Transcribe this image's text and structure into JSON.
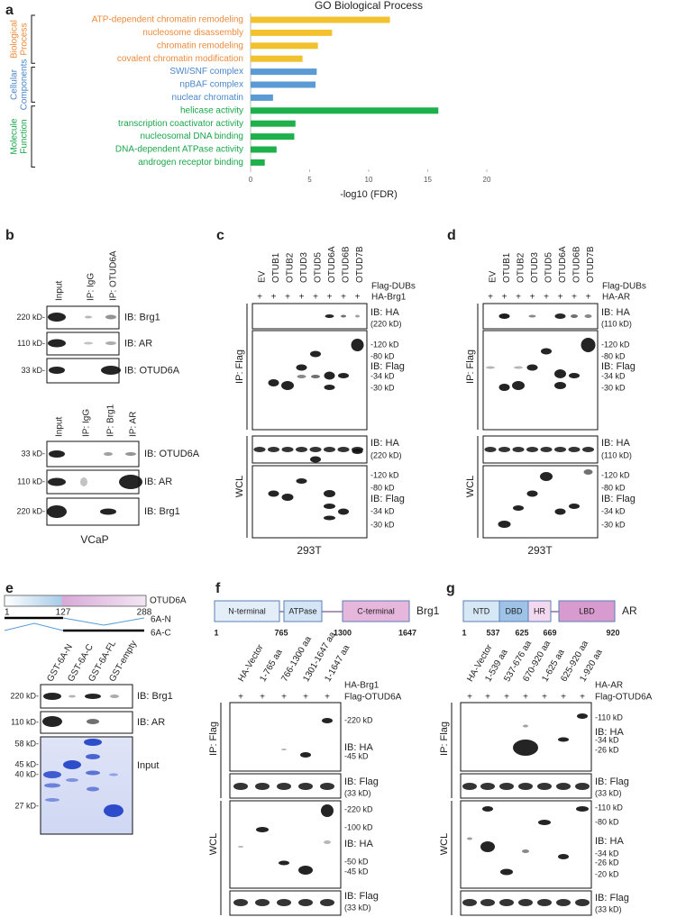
{
  "chart_data": {
    "type": "bar",
    "orientation": "horizontal",
    "title": "GO Biological Process",
    "xlabel": "-log10 (FDR)",
    "xlim": [
      0,
      20
    ],
    "xticks": [
      0,
      5,
      10,
      15,
      20
    ],
    "groups": [
      {
        "name": [
          "Biological",
          "Process"
        ],
        "color": "#f2c12e",
        "label_color": "#ed8a3c",
        "categories": [
          "ATP-dependent chromatin remodeling",
          "nucleosome disassembly",
          "chromatin remodeling",
          "covalent chromatin modification"
        ],
        "values": [
          11.8,
          6.9,
          5.7,
          4.4
        ]
      },
      {
        "name": [
          "Cellular",
          "Components"
        ],
        "color": "#5b9bd5",
        "label_color": "#4a86c8",
        "categories": [
          "SWI/SNF complex",
          "npBAF complex",
          "nuclear chromatin"
        ],
        "values": [
          5.6,
          5.5,
          1.9
        ]
      },
      {
        "name": [
          "Molecule",
          "Function"
        ],
        "color": "#1db04b",
        "label_color": "#1aa64a",
        "categories": [
          "helicase activity",
          "transcription coactivator activity",
          "nucleosomal DNA binding",
          "DNA-dependent ATPase activity",
          "androgen receptor binding"
        ],
        "values": [
          15.9,
          3.8,
          3.7,
          2.2,
          1.2
        ]
      }
    ]
  },
  "panels": {
    "a": {
      "letter": "a"
    },
    "b": {
      "letter": "b",
      "top": {
        "lanes": [
          "Input",
          "IP: IgG",
          "IP: OTUD6A"
        ],
        "rows": [
          [
            "220 kD-",
            "IB: Brg1"
          ],
          [
            "110 kD-",
            "IB: AR"
          ],
          [
            "33 kD-",
            "IB: OTUD6A"
          ]
        ]
      },
      "bottom": {
        "lanes": [
          "Input",
          "IP: IgG",
          "IP: Brg1",
          "IP: AR"
        ],
        "rows": [
          [
            "33 kD-",
            "IB: OTUD6A"
          ],
          [
            "110 kD-",
            "IB: AR"
          ],
          [
            "220 kD-",
            "IB: Brg1"
          ]
        ]
      },
      "cell_line": "VCaP"
    },
    "c": {
      "letter": "c",
      "lanes": [
        "EV",
        "OTUB1",
        "OTUB2",
        "OTUD3",
        "OTUD5",
        "OTUD6A",
        "OTUD6B",
        "OTUD7B"
      ],
      "plus": "+",
      "rows": [
        "Flag-DUBs",
        "HA-Brg1"
      ],
      "ip": "IP: Flag",
      "wcl": "WCL",
      "ip_labels": [
        "IB: HA",
        "(220 kD)",
        "-120 kD",
        "-80 kD",
        "IB: Flag",
        "-34 kD",
        "-30 kD"
      ],
      "wcl_labels": [
        "IB: HA",
        "(220 kD)",
        "-120 kD",
        "-80 kD",
        "IB: Flag",
        "-34 kD",
        "-30 kD"
      ],
      "cell_line": "293T"
    },
    "d": {
      "letter": "d",
      "lanes": [
        "EV",
        "OTUB1",
        "OTUB2",
        "OTUD3",
        "OTUD5",
        "OTUD6A",
        "OTUD6B",
        "OTUD7B"
      ],
      "plus": "+",
      "rows": [
        "Flag-DUBs",
        "HA-AR"
      ],
      "ip": "IP: Flag",
      "wcl": "WCL",
      "ip_labels": [
        "IB: HA",
        "(110 kD)",
        "-120 kD",
        "-80 kD",
        "IB: Flag",
        "-34 kD",
        "-30 kD"
      ],
      "wcl_labels": [
        "IB: HA",
        "(110 kD)",
        "-120 kD",
        "-80 kD",
        "IB: Flag",
        "-34 kD",
        "-30 kD"
      ],
      "cell_line": "293T"
    },
    "e": {
      "letter": "e",
      "protein": "OTUD6A",
      "positions": [
        1,
        127,
        288
      ],
      "constructs": [
        "6A-N",
        "6A-C"
      ],
      "lanes": [
        "GST-6A-N",
        "GST-6A-C",
        "GST-6A-FL",
        "GST-empty"
      ],
      "rows": [
        [
          "220 kD-",
          "IB: Brg1"
        ],
        [
          "110 kD-",
          "IB: AR"
        ]
      ],
      "markers": [
        "58 kD-",
        "45 kD-",
        "40 kD-",
        "27 kD-"
      ],
      "input": "Input"
    },
    "f": {
      "letter": "f",
      "domains": [
        "N-terminal",
        "ATPase",
        "C-terminal"
      ],
      "protein": "Brg1",
      "positions": [
        1,
        765,
        1300,
        1647
      ],
      "lanes": [
        "HA-Vector",
        "1-765 aa",
        "766-1300 aa",
        "1301-1647 aa",
        "1-1647 aa"
      ],
      "rows": [
        "HA-Brg1",
        "Flag-OTUD6A"
      ],
      "plus": "+",
      "ip": "IP: Flag",
      "wcl": "WCL",
      "ip_labels": [
        "-220 kD",
        "IB: HA",
        "-45 kD"
      ],
      "ip_flag": [
        "IB: Flag",
        "(33 kD)"
      ],
      "wcl_labels": [
        "-220 kD",
        "-100 kD",
        "IB: HA",
        "-50 kD",
        "-45 kD"
      ],
      "wcl_flag": [
        "IB: Flag",
        "(33 kD)"
      ]
    },
    "g": {
      "letter": "g",
      "domains": [
        "NTD",
        "DBD",
        "HR",
        "LBD"
      ],
      "protein": "AR",
      "positions": [
        1,
        537,
        625,
        669,
        920
      ],
      "lanes": [
        "HA-Vector",
        "1-539 aa",
        "537-676 aa",
        "670-920 aa",
        "1-625 aa",
        "625-920 aa",
        "1-920 aa"
      ],
      "rows": [
        "HA-AR",
        "Flag-OTUD6A"
      ],
      "plus": "+",
      "ip": "IP: Flag",
      "wcl": "WCL",
      "ip_labels": [
        "-110 kD",
        "IB: HA",
        "-34 kD",
        "-26 kD"
      ],
      "ip_flag": [
        "IB: Flag",
        "(33 kD)"
      ],
      "wcl_labels": [
        "-110 kD",
        "-80 kD",
        "IB: HA",
        "-34 kD",
        "-26 kD",
        "-20 kD"
      ],
      "wcl_flag": [
        "IB: Flag",
        "(33 kD)"
      ]
    }
  }
}
